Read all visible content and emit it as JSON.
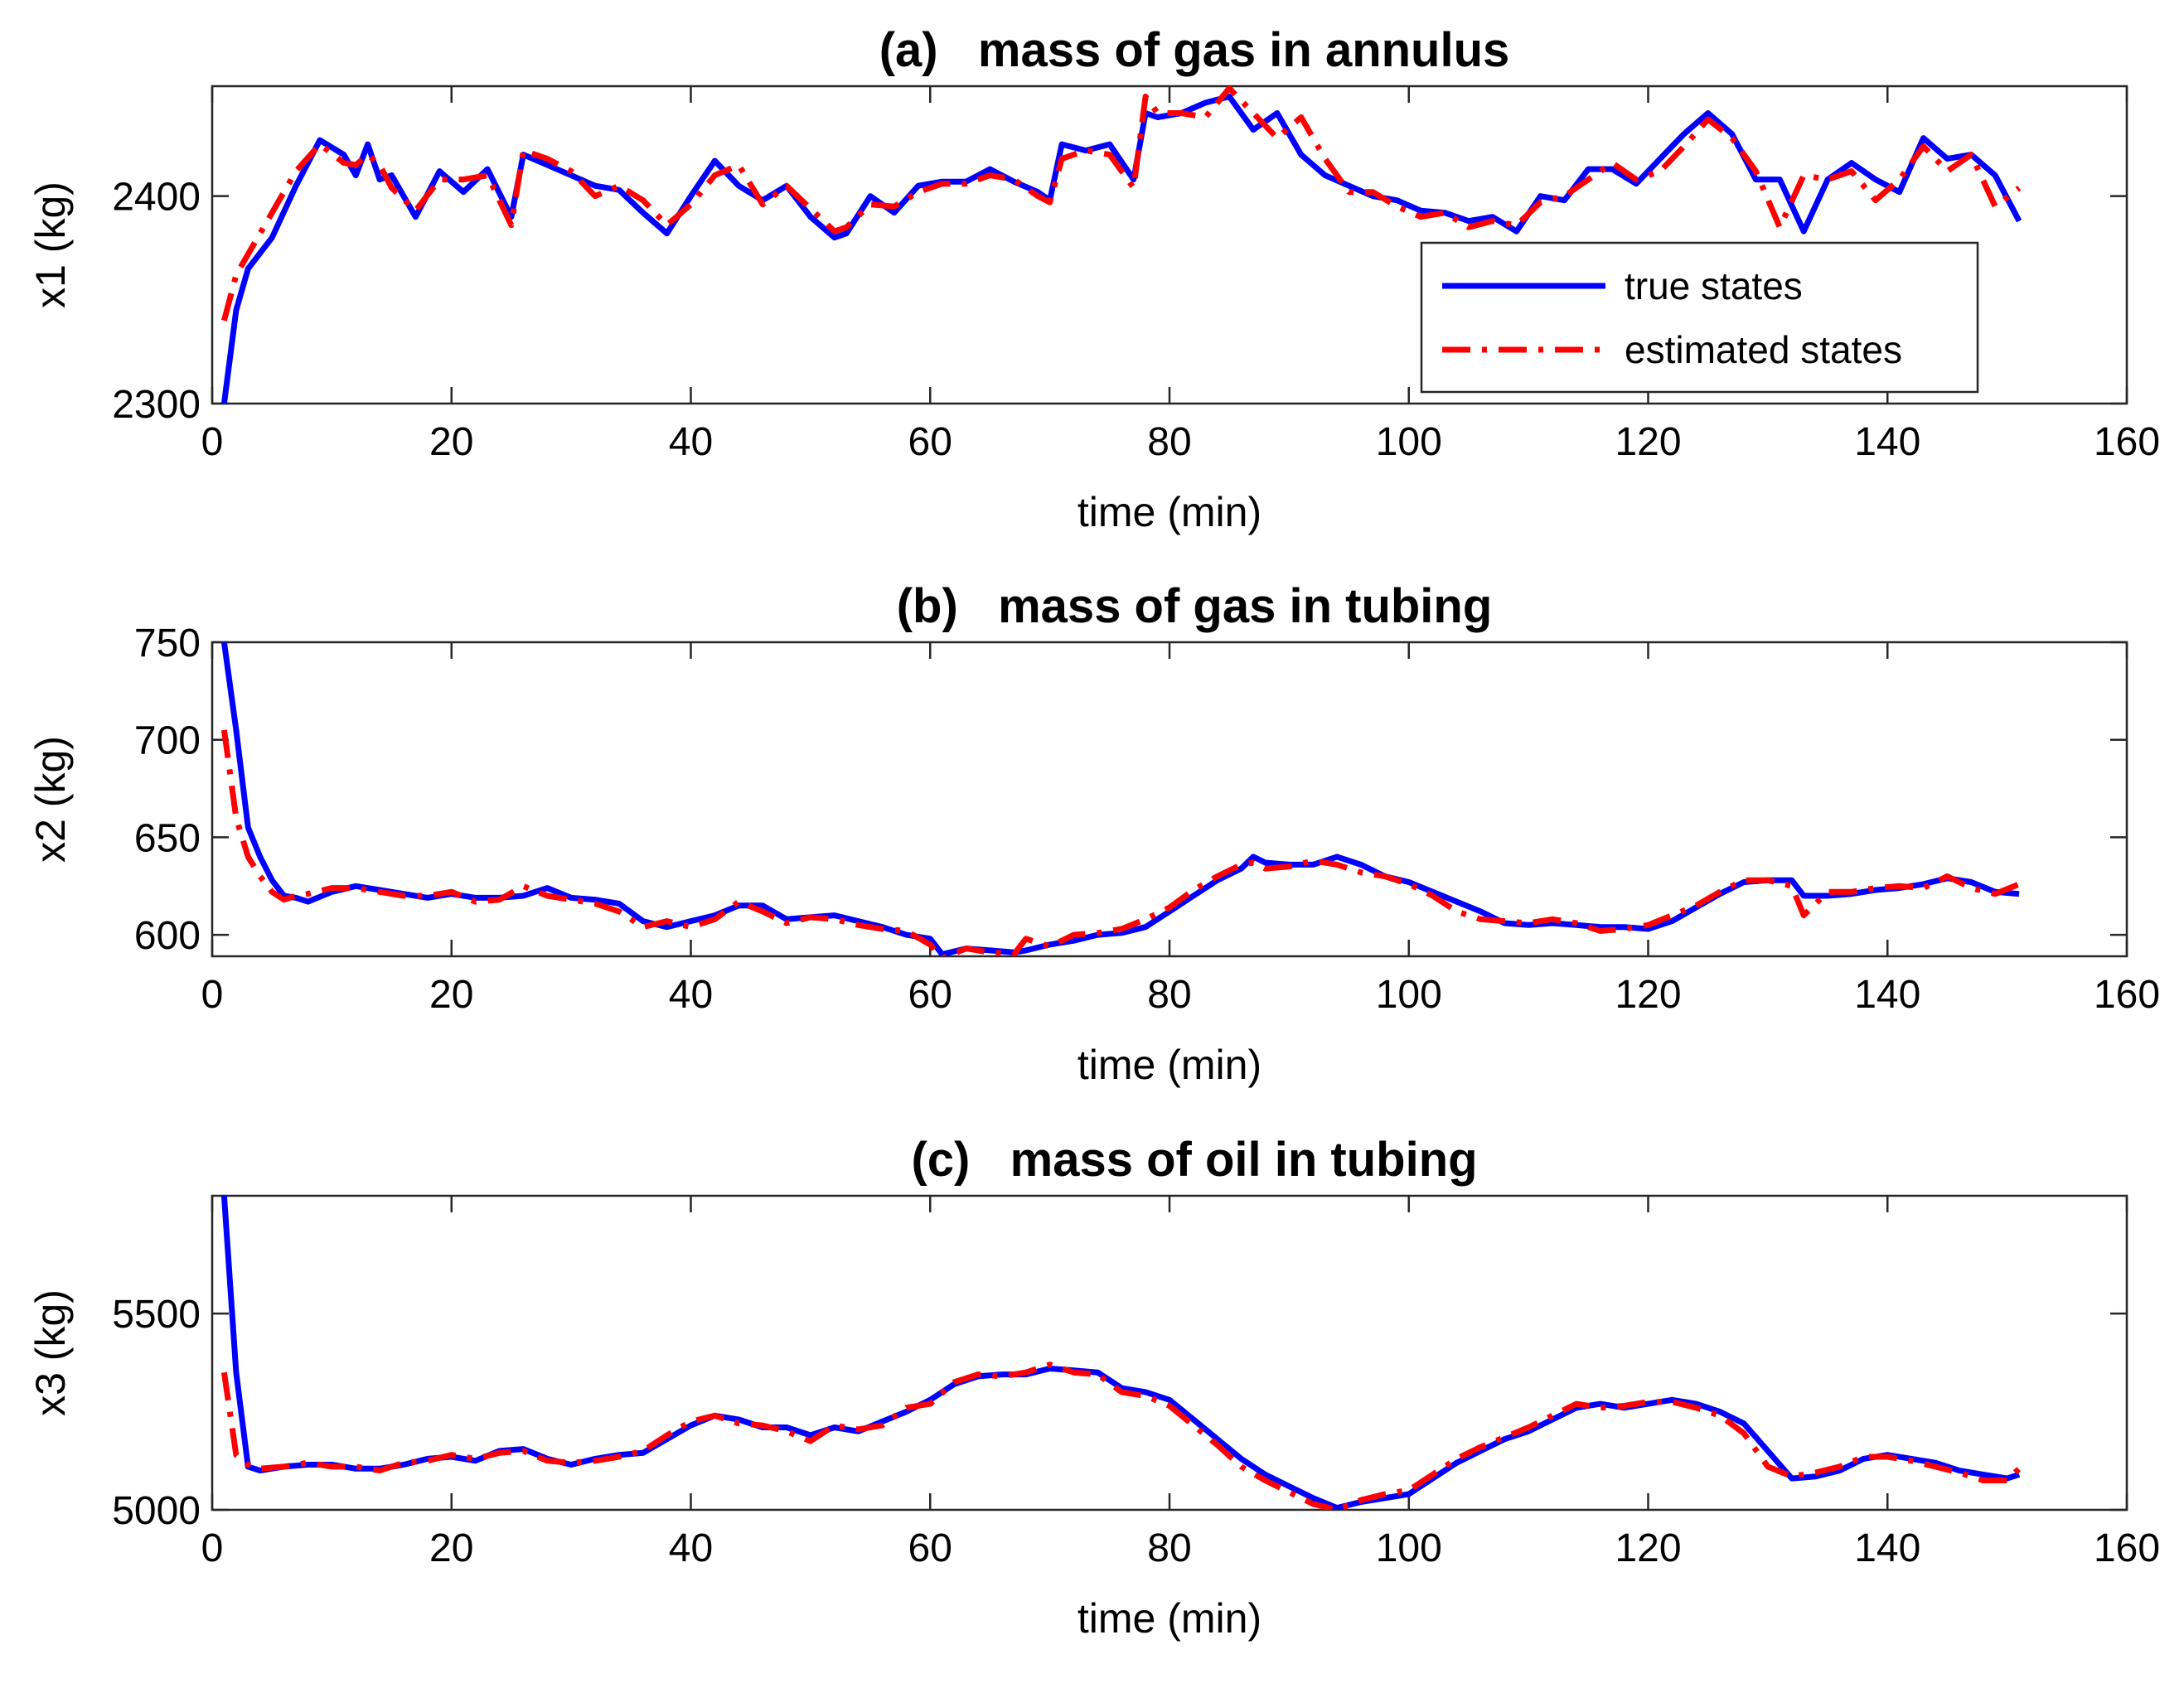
{
  "legend": {
    "items": [
      {
        "label": "true states",
        "color": "#0000ff",
        "style": "solid"
      },
      {
        "label": "estimated states",
        "color": "#ff0000",
        "style": "dashdot"
      }
    ]
  },
  "chart_data": [
    {
      "type": "line",
      "title": "(a)   mass of gas in annulus",
      "xlabel": "time (min)",
      "ylabel": "x1 (kg)",
      "xlim": [
        0,
        160
      ],
      "ylim": [
        2300,
        2453
      ],
      "xticks": [
        0,
        20,
        40,
        60,
        80,
        100,
        120,
        140,
        160
      ],
      "yticks": [
        2300,
        2400
      ],
      "legend_position": "bottom-right",
      "series": [
        {
          "name": "true states",
          "color": "#0000ff",
          "x": [
            1,
            2,
            3,
            5,
            7,
            9,
            11,
            12,
            13,
            14,
            15,
            17,
            19,
            21,
            23,
            25,
            26,
            28,
            30,
            32,
            34,
            36,
            38,
            40,
            42,
            44,
            46,
            48,
            50,
            52,
            53,
            55,
            57,
            59,
            61,
            63,
            65,
            67,
            69,
            70,
            71,
            73,
            75,
            77,
            78,
            79,
            81,
            83,
            85,
            87,
            89,
            91,
            93,
            95,
            97,
            99,
            101,
            103,
            105,
            107,
            109,
            111,
            113,
            115,
            117,
            119,
            121,
            123,
            125,
            127,
            129,
            131,
            133,
            135,
            137,
            139,
            141,
            143,
            145,
            147,
            149,
            151
          ],
          "values": [
            2300,
            2345,
            2365,
            2380,
            2405,
            2427,
            2420,
            2410,
            2425,
            2408,
            2410,
            2390,
            2412,
            2402,
            2413,
            2390,
            2420,
            2415,
            2410,
            2405,
            2403,
            2392,
            2382,
            2400,
            2417,
            2405,
            2398,
            2405,
            2390,
            2380,
            2382,
            2400,
            2392,
            2405,
            2407,
            2407,
            2413,
            2407,
            2402,
            2398,
            2425,
            2422,
            2425,
            2408,
            2440,
            2438,
            2440,
            2445,
            2448,
            2432,
            2440,
            2420,
            2410,
            2405,
            2400,
            2398,
            2393,
            2392,
            2388,
            2390,
            2383,
            2400,
            2398,
            2413,
            2413,
            2406,
            2418,
            2430,
            2440,
            2430,
            2408,
            2408,
            2383,
            2408,
            2416,
            2408,
            2402,
            2428,
            2418,
            2420,
            2410,
            2388
          ]
        },
        {
          "name": "estimated states",
          "color": "#ff0000",
          "x": [
            1,
            2,
            3,
            5,
            7,
            9,
            11,
            12,
            13,
            14,
            15,
            17,
            19,
            21,
            23,
            25,
            26,
            28,
            30,
            32,
            34,
            36,
            38,
            40,
            42,
            44,
            46,
            48,
            50,
            52,
            53,
            55,
            57,
            59,
            61,
            63,
            65,
            67,
            69,
            70,
            71,
            73,
            75,
            77,
            78,
            79,
            81,
            83,
            85,
            87,
            89,
            91,
            93,
            95,
            97,
            99,
            101,
            103,
            105,
            107,
            109,
            111,
            113,
            115,
            117,
            119,
            121,
            123,
            125,
            127,
            129,
            131,
            133,
            135,
            137,
            139,
            141,
            143,
            145,
            147,
            149,
            151
          ],
          "values": [
            2340,
            2362,
            2372,
            2392,
            2412,
            2425,
            2416,
            2415,
            2420,
            2415,
            2404,
            2393,
            2408,
            2408,
            2410,
            2386,
            2422,
            2418,
            2412,
            2400,
            2405,
            2398,
            2386,
            2396,
            2410,
            2415,
            2396,
            2405,
            2394,
            2383,
            2385,
            2396,
            2395,
            2402,
            2406,
            2406,
            2410,
            2408,
            2400,
            2397,
            2418,
            2422,
            2420,
            2404,
            2448,
            2440,
            2440,
            2438,
            2452,
            2440,
            2428,
            2438,
            2418,
            2402,
            2402,
            2395,
            2390,
            2392,
            2385,
            2388,
            2386,
            2397,
            2400,
            2408,
            2416,
            2408,
            2412,
            2424,
            2437,
            2428,
            2412,
            2385,
            2410,
            2408,
            2412,
            2398,
            2408,
            2424,
            2412,
            2420,
            2395,
            2404
          ]
        }
      ]
    },
    {
      "type": "line",
      "title": "(b)   mass of gas in tubing",
      "xlabel": "time (min)",
      "ylabel": "x2 (kg)",
      "xlim": [
        0,
        160
      ],
      "ylim": [
        589,
        750
      ],
      "xticks": [
        0,
        20,
        40,
        60,
        80,
        100,
        120,
        140,
        160
      ],
      "yticks": [
        600,
        650,
        700,
        750
      ],
      "series": [
        {
          "name": "true states",
          "color": "#0000ff",
          "x": [
            1,
            2,
            3,
            4,
            5,
            6,
            7,
            8,
            10,
            12,
            14,
            16,
            18,
            20,
            22,
            24,
            26,
            28,
            30,
            32,
            34,
            36,
            38,
            40,
            42,
            44,
            46,
            48,
            50,
            52,
            54,
            56,
            58,
            60,
            61,
            63,
            65,
            67,
            68,
            70,
            72,
            74,
            76,
            78,
            80,
            82,
            84,
            86,
            87,
            88,
            90,
            92,
            94,
            96,
            98,
            100,
            102,
            104,
            106,
            108,
            110,
            112,
            114,
            116,
            118,
            120,
            122,
            124,
            126,
            128,
            130,
            132,
            133,
            135,
            137,
            139,
            141,
            143,
            145,
            147,
            149,
            151
          ],
          "values": [
            750,
            705,
            655,
            640,
            628,
            620,
            619,
            617,
            622,
            625,
            623,
            621,
            619,
            621,
            619,
            619,
            620,
            624,
            619,
            618,
            616,
            607,
            604,
            607,
            610,
            615,
            615,
            608,
            609,
            610,
            607,
            604,
            600,
            598,
            590,
            593,
            592,
            591,
            592,
            595,
            597,
            600,
            601,
            604,
            612,
            620,
            628,
            634,
            640,
            637,
            636,
            636,
            640,
            636,
            630,
            627,
            622,
            617,
            612,
            606,
            605,
            606,
            605,
            604,
            604,
            603,
            607,
            614,
            621,
            627,
            628,
            628,
            620,
            620,
            621,
            623,
            624,
            626,
            629,
            627,
            622,
            621
          ]
        },
        {
          "name": "estimated states",
          "color": "#ff0000",
          "x": [
            1,
            2,
            3,
            4,
            5,
            6,
            7,
            8,
            10,
            12,
            14,
            16,
            18,
            20,
            22,
            24,
            26,
            28,
            30,
            32,
            34,
            36,
            38,
            40,
            42,
            44,
            46,
            48,
            50,
            52,
            54,
            56,
            58,
            60,
            61,
            63,
            65,
            67,
            68,
            70,
            72,
            74,
            76,
            78,
            80,
            82,
            84,
            86,
            87,
            88,
            90,
            92,
            94,
            96,
            98,
            100,
            102,
            104,
            106,
            108,
            110,
            112,
            114,
            116,
            118,
            120,
            122,
            124,
            126,
            128,
            130,
            132,
            133,
            135,
            137,
            139,
            141,
            143,
            145,
            147,
            149,
            151
          ],
          "values": [
            705,
            660,
            640,
            630,
            622,
            618,
            620,
            621,
            624,
            624,
            622,
            620,
            620,
            622,
            617,
            618,
            625,
            620,
            618,
            616,
            612,
            604,
            607,
            604,
            608,
            617,
            612,
            606,
            609,
            608,
            605,
            603,
            602,
            595,
            588,
            593,
            591,
            590,
            598,
            594,
            600,
            601,
            603,
            608,
            614,
            623,
            630,
            636,
            637,
            634,
            635,
            638,
            636,
            632,
            630,
            626,
            620,
            612,
            608,
            607,
            606,
            608,
            606,
            602,
            603,
            605,
            610,
            615,
            622,
            628,
            628,
            625,
            610,
            622,
            622,
            624,
            625,
            624,
            630,
            624,
            621,
            626
          ]
        }
      ]
    },
    {
      "type": "line",
      "title": "(c)   mass of oil in tubing",
      "xlabel": "time (min)",
      "ylabel": "x3 (kg)",
      "xlim": [
        0,
        160
      ],
      "ylim": [
        5000,
        5800
      ],
      "xticks": [
        0,
        20,
        40,
        60,
        80,
        100,
        120,
        140,
        160
      ],
      "yticks": [
        5000,
        5500
      ],
      "series": [
        {
          "name": "true states",
          "color": "#0000ff",
          "x": [
            1,
            2,
            3,
            4,
            6,
            8,
            10,
            12,
            14,
            16,
            18,
            20,
            22,
            24,
            26,
            28,
            30,
            32,
            34,
            36,
            38,
            40,
            42,
            44,
            46,
            48,
            50,
            52,
            54,
            56,
            58,
            60,
            62,
            64,
            66,
            68,
            70,
            72,
            74,
            76,
            78,
            80,
            82,
            84,
            86,
            88,
            90,
            92,
            94,
            96,
            98,
            100,
            102,
            104,
            106,
            108,
            110,
            112,
            114,
            116,
            118,
            120,
            122,
            124,
            126,
            128,
            130,
            132,
            134,
            136,
            138,
            140,
            142,
            144,
            146,
            148,
            150,
            151
          ],
          "values": [
            5800,
            5350,
            5110,
            5100,
            5110,
            5115,
            5115,
            5105,
            5105,
            5115,
            5130,
            5135,
            5125,
            5150,
            5155,
            5130,
            5115,
            5130,
            5140,
            5145,
            5180,
            5215,
            5240,
            5230,
            5210,
            5210,
            5190,
            5210,
            5200,
            5225,
            5250,
            5280,
            5320,
            5340,
            5345,
            5345,
            5360,
            5355,
            5350,
            5310,
            5300,
            5280,
            5230,
            5180,
            5130,
            5090,
            5060,
            5030,
            5005,
            5020,
            5030,
            5040,
            5080,
            5120,
            5150,
            5180,
            5200,
            5230,
            5260,
            5270,
            5260,
            5270,
            5280,
            5270,
            5250,
            5220,
            5150,
            5080,
            5085,
            5100,
            5130,
            5140,
            5130,
            5120,
            5100,
            5090,
            5080,
            5090
          ]
        },
        {
          "name": "estimated states",
          "color": "#ff0000",
          "x": [
            1,
            2,
            3,
            4,
            6,
            8,
            10,
            12,
            14,
            16,
            18,
            20,
            22,
            24,
            26,
            28,
            30,
            32,
            34,
            36,
            38,
            40,
            42,
            44,
            46,
            48,
            50,
            52,
            54,
            56,
            58,
            60,
            62,
            64,
            66,
            68,
            70,
            72,
            74,
            76,
            78,
            80,
            82,
            84,
            86,
            88,
            90,
            92,
            94,
            96,
            98,
            100,
            102,
            104,
            106,
            108,
            110,
            112,
            114,
            116,
            118,
            120,
            122,
            124,
            126,
            128,
            130,
            132,
            134,
            136,
            138,
            140,
            142,
            144,
            146,
            148,
            150,
            151
          ],
          "values": [
            5350,
            5140,
            5115,
            5105,
            5110,
            5120,
            5110,
            5110,
            5100,
            5120,
            5125,
            5140,
            5130,
            5145,
            5150,
            5125,
            5120,
            5125,
            5135,
            5150,
            5190,
            5225,
            5240,
            5220,
            5215,
            5200,
            5175,
            5215,
            5205,
            5215,
            5260,
            5270,
            5325,
            5345,
            5340,
            5350,
            5370,
            5350,
            5345,
            5300,
            5290,
            5265,
            5215,
            5165,
            5110,
            5075,
            5045,
            5015,
            5000,
            5025,
            5040,
            5050,
            5090,
            5130,
            5160,
            5185,
            5210,
            5240,
            5270,
            5260,
            5265,
            5275,
            5275,
            5260,
            5240,
            5195,
            5110,
            5085,
            5095,
            5110,
            5135,
            5135,
            5125,
            5110,
            5095,
            5075,
            5075,
            5105
          ]
        }
      ]
    }
  ]
}
